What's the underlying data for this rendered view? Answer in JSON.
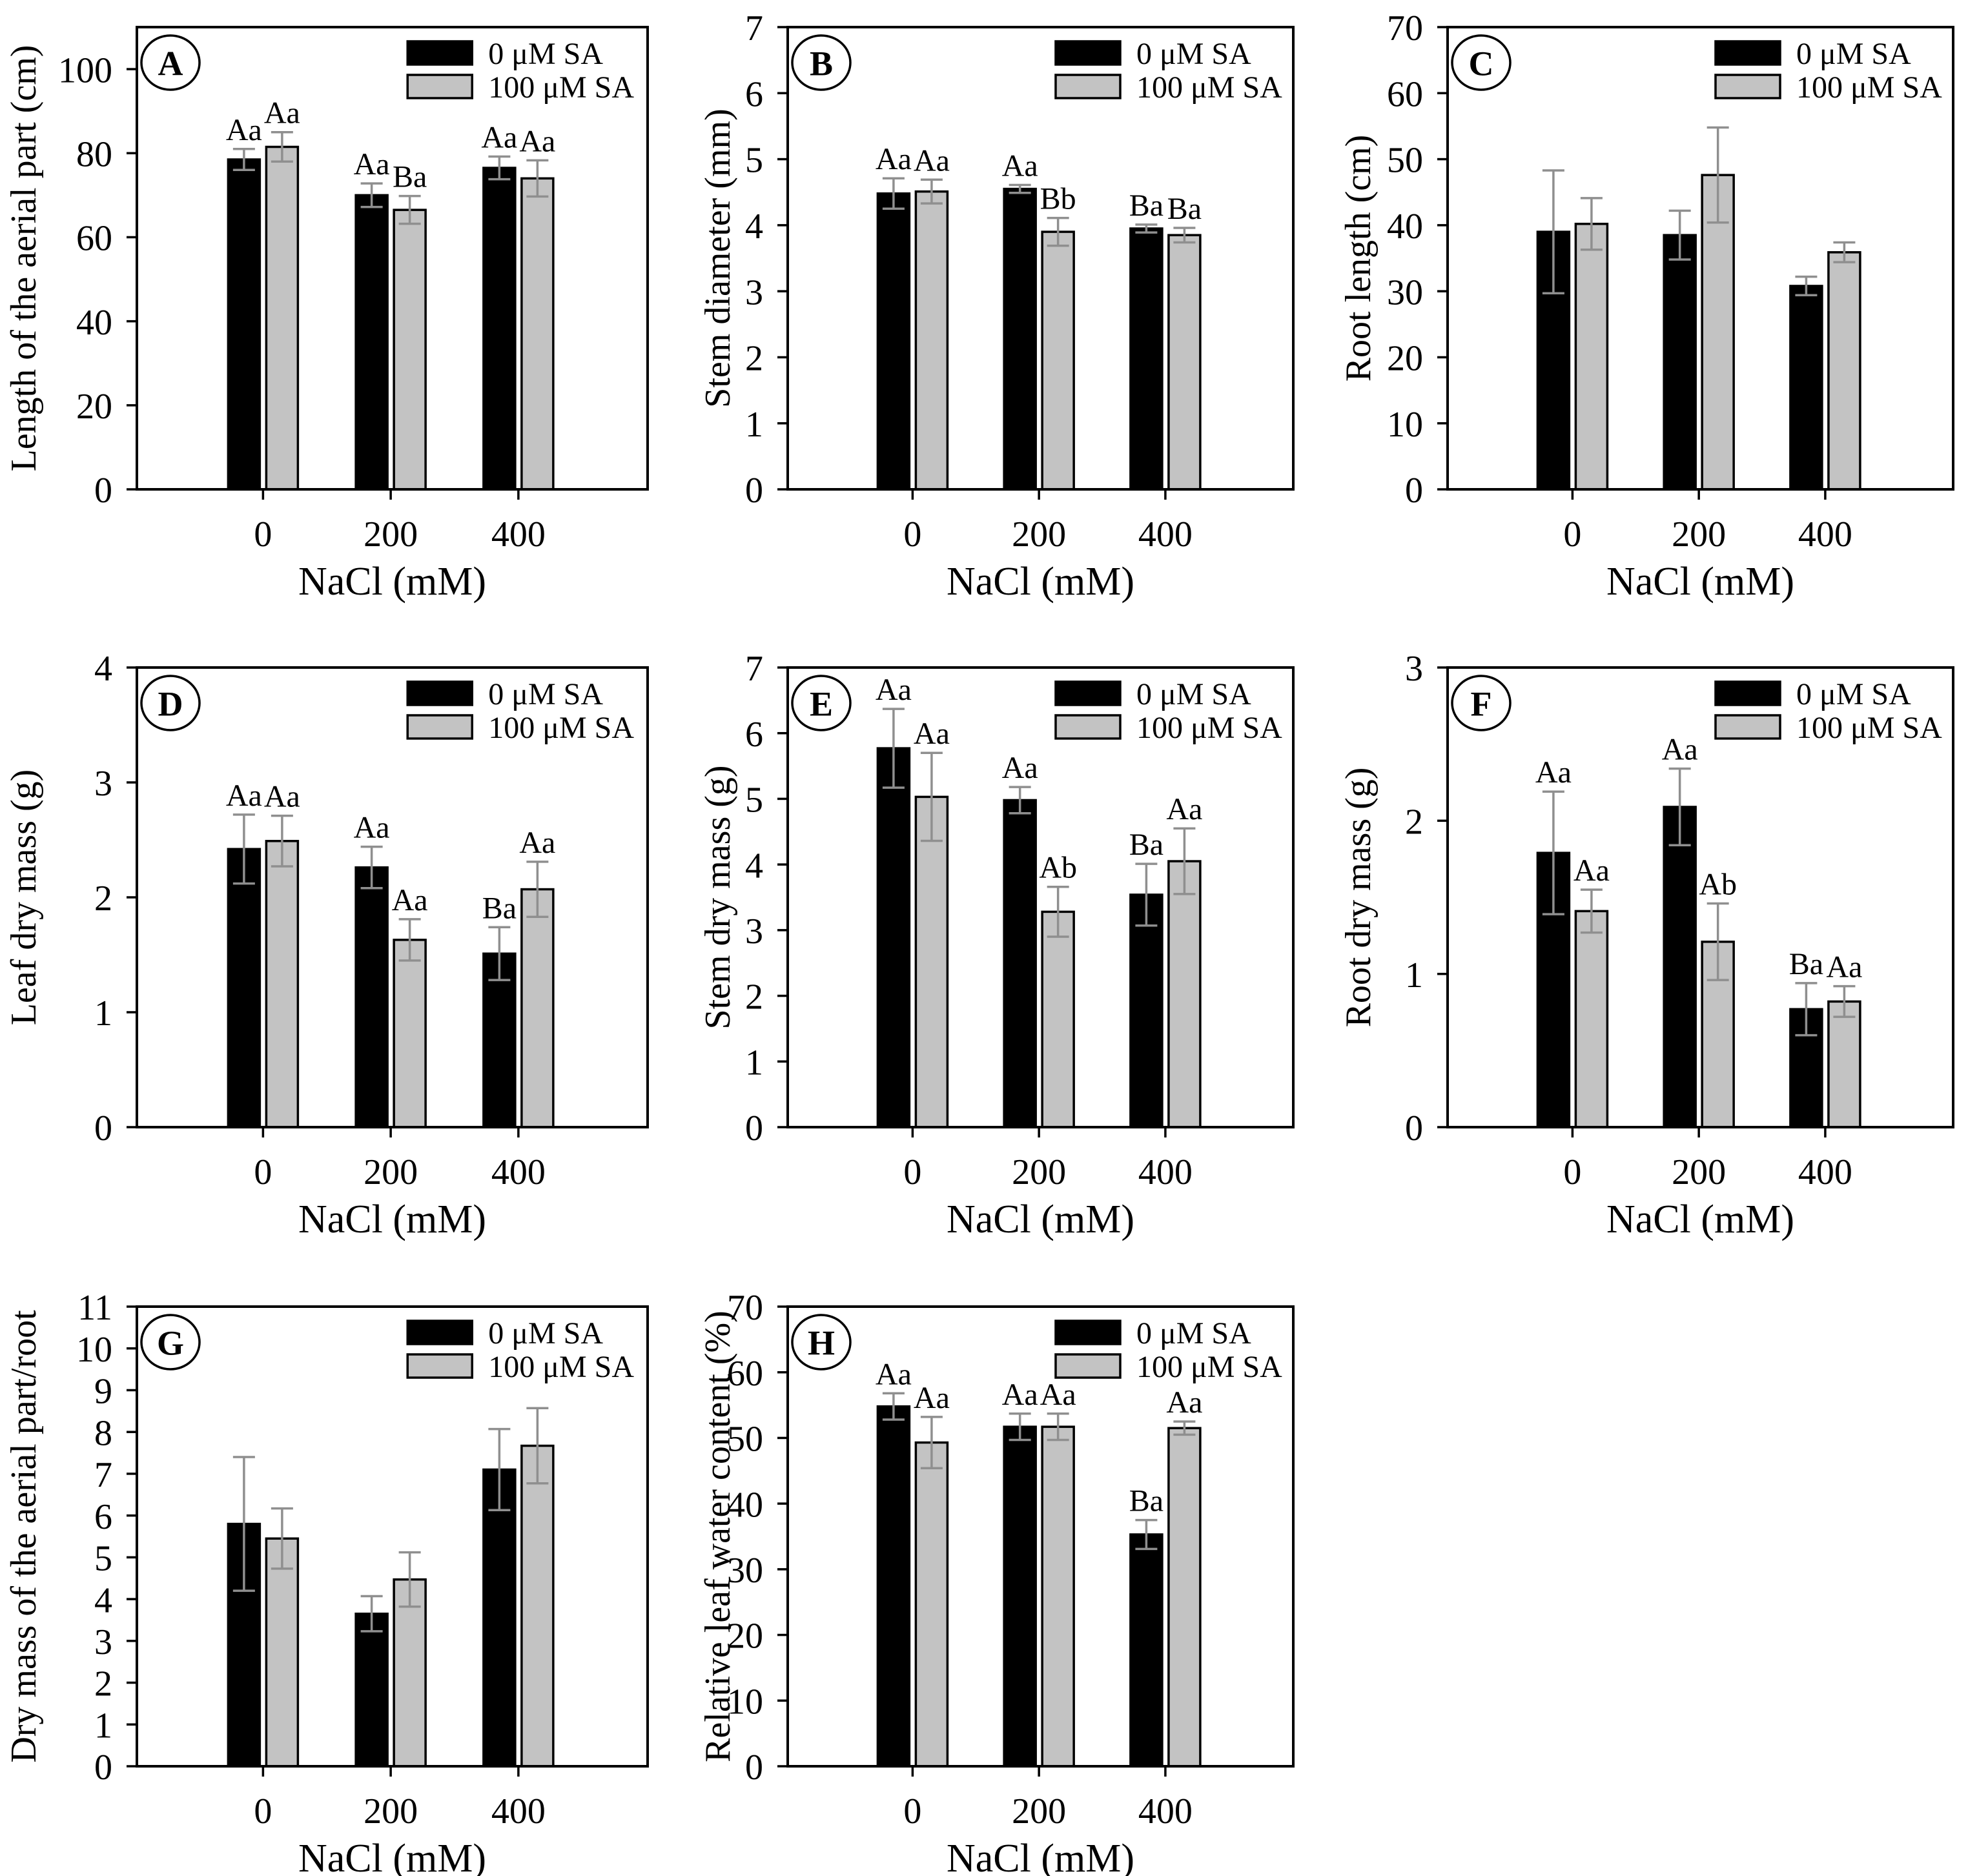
{
  "figure": {
    "xlabel": "NaCl (mM)",
    "categories": [
      "0",
      "200",
      "400"
    ],
    "legend": [
      {
        "label": "0 μM SA",
        "color": "#000000"
      },
      {
        "label": "100 μM SA",
        "color": "#c3c3c3"
      }
    ],
    "colors": {
      "axis": "#000000",
      "bar_border": "#000000",
      "error_bar": "#8f8f8f",
      "background": "#ffffff"
    }
  },
  "chart_data": [
    {
      "panel": "A",
      "type": "bar",
      "ylabel": "Length of the aerial part (cm)",
      "ylim": [
        0,
        110
      ],
      "ytick_step": 20,
      "ytick_max": 100,
      "categories": [
        "0",
        "200",
        "400"
      ],
      "xlabel": "NaCl (mM)",
      "series": [
        {
          "name": "0 μM SA",
          "values": [
            78.5,
            70.0,
            76.5
          ],
          "errors": [
            2.5,
            2.8,
            2.7
          ],
          "letters": [
            "Aa",
            "Aa",
            "Aa"
          ]
        },
        {
          "name": "100 μM SA",
          "values": [
            81.5,
            66.5,
            74.0
          ],
          "errors": [
            3.5,
            3.3,
            4.3
          ],
          "letters": [
            "Aa",
            "Ba",
            "Aa"
          ]
        }
      ]
    },
    {
      "panel": "B",
      "type": "bar",
      "ylabel": "Stem diameter  (mm)",
      "ylim": [
        0,
        7
      ],
      "ytick_step": 1,
      "ytick_max": 7,
      "categories": [
        "0",
        "200",
        "400"
      ],
      "xlabel": "NaCl (mM)",
      "series": [
        {
          "name": "0 μM SA",
          "values": [
            4.48,
            4.55,
            3.95
          ],
          "errors": [
            0.23,
            0.06,
            0.06
          ],
          "letters": [
            "Aa",
            "Aa",
            "Ba"
          ]
        },
        {
          "name": "100 μM SA",
          "values": [
            4.51,
            3.9,
            3.85
          ],
          "errors": [
            0.18,
            0.21,
            0.11
          ],
          "letters": [
            "Aa",
            "Bb",
            "Ba"
          ]
        }
      ]
    },
    {
      "panel": "C",
      "type": "bar",
      "ylabel": "Root length (cm)",
      "ylim": [
        0,
        70
      ],
      "ytick_step": 10,
      "ytick_max": 70,
      "categories": [
        "0",
        "200",
        "400"
      ],
      "xlabel": "NaCl (mM)",
      "series": [
        {
          "name": "0 μM SA",
          "values": [
            39.0,
            38.5,
            30.8
          ],
          "errors": [
            9.3,
            3.7,
            1.4
          ],
          "letters": null
        },
        {
          "name": "100 μM SA",
          "values": [
            40.2,
            47.6,
            35.9
          ],
          "errors": [
            3.9,
            7.2,
            1.5
          ],
          "letters": null
        }
      ]
    },
    {
      "panel": "D",
      "type": "bar",
      "ylabel": "Leaf dry mass  (g)",
      "ylim": [
        0,
        4
      ],
      "ytick_step": 1,
      "ytick_max": 4,
      "categories": [
        "0",
        "200",
        "400"
      ],
      "xlabel": "NaCl (mM)",
      "series": [
        {
          "name": "0 μM SA",
          "values": [
            2.42,
            2.26,
            1.51
          ],
          "errors": [
            0.3,
            0.18,
            0.23
          ],
          "letters": [
            "Aa",
            "Aa",
            "Ba"
          ]
        },
        {
          "name": "100 μM SA",
          "values": [
            2.49,
            1.63,
            2.07
          ],
          "errors": [
            0.22,
            0.18,
            0.24
          ],
          "letters": [
            "Aa",
            "Aa",
            "Aa"
          ]
        }
      ]
    },
    {
      "panel": "E",
      "type": "bar",
      "ylabel": "Stem dry mass (g)",
      "ylim": [
        0,
        7
      ],
      "ytick_step": 1,
      "ytick_max": 7,
      "categories": [
        "0",
        "200",
        "400"
      ],
      "xlabel": "NaCl (mM)",
      "series": [
        {
          "name": "0 μM SA",
          "values": [
            5.77,
            4.98,
            3.54
          ],
          "errors": [
            0.6,
            0.2,
            0.47
          ],
          "letters": [
            "Aa",
            "Aa",
            "Ba"
          ]
        },
        {
          "name": "100 μM SA",
          "values": [
            5.03,
            3.28,
            4.05
          ],
          "errors": [
            0.67,
            0.38,
            0.5
          ],
          "letters": [
            "Aa",
            "Ab",
            "Aa"
          ]
        }
      ]
    },
    {
      "panel": "F",
      "type": "bar",
      "ylabel": "Root dry mass (g)",
      "ylim": [
        0,
        3
      ],
      "ytick_step": 1,
      "ytick_max": 3,
      "categories": [
        "0",
        "200",
        "400"
      ],
      "xlabel": "NaCl (mM)",
      "series": [
        {
          "name": "0 μM SA",
          "values": [
            1.79,
            2.09,
            0.77
          ],
          "errors": [
            0.4,
            0.25,
            0.17
          ],
          "letters": [
            "Aa",
            "Aa",
            "Ba"
          ]
        },
        {
          "name": "100 μM SA",
          "values": [
            1.41,
            1.21,
            0.82
          ],
          "errors": [
            0.14,
            0.25,
            0.1
          ],
          "letters": [
            "Aa",
            "Ab",
            "Aa"
          ]
        }
      ]
    },
    {
      "panel": "G",
      "type": "bar",
      "ylabel": "Dry mass of the aerial part/root",
      "ylim": [
        0,
        11
      ],
      "ytick_step": 1,
      "ytick_max": 11,
      "categories": [
        "0",
        "200",
        "400"
      ],
      "xlabel": "NaCl (mM)",
      "series": [
        {
          "name": "0 μM SA",
          "values": [
            5.8,
            3.65,
            7.1
          ],
          "errors": [
            1.6,
            0.42,
            0.97
          ],
          "letters": null
        },
        {
          "name": "100 μM SA",
          "values": [
            5.45,
            4.47,
            7.67
          ],
          "errors": [
            0.72,
            0.65,
            0.9
          ],
          "letters": null
        }
      ]
    },
    {
      "panel": "H",
      "type": "bar",
      "ylabel": "Relative leaf water content (%)",
      "ylim": [
        0,
        70
      ],
      "ytick_step": 10,
      "ytick_max": 70,
      "categories": [
        "0",
        "200",
        "400"
      ],
      "xlabel": "NaCl (mM)",
      "series": [
        {
          "name": "0 μM SA",
          "values": [
            54.8,
            51.7,
            35.3
          ],
          "errors": [
            2.0,
            2.0,
            2.2
          ],
          "letters": [
            "Aa",
            "Aa",
            "Ba"
          ]
        },
        {
          "name": "100 μM SA",
          "values": [
            49.3,
            51.7,
            51.5
          ],
          "errors": [
            3.9,
            2.0,
            1.0
          ],
          "letters": [
            "Aa",
            "Aa",
            "Aa"
          ]
        }
      ]
    }
  ]
}
